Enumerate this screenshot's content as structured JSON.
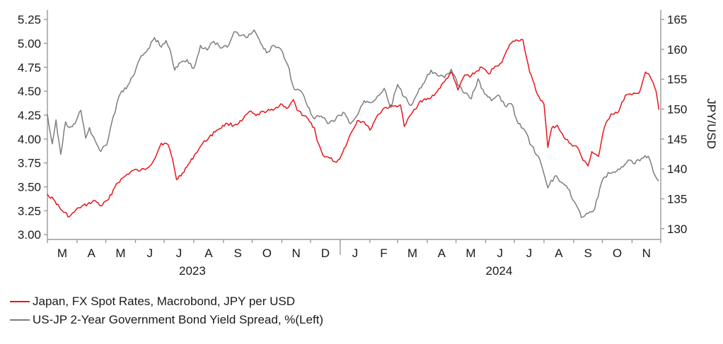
{
  "chart_data": {
    "type": "line",
    "title": "",
    "y_left": {
      "ylim": [
        2.95,
        5.35
      ],
      "ticks": [
        "3.00",
        "3.25",
        "3.50",
        "3.75",
        "4.00",
        "4.25",
        "4.50",
        "4.75",
        "5.00",
        "5.25"
      ]
    },
    "y_right": {
      "ylim": [
        128.2,
        166.6
      ],
      "ticks": [
        "130",
        "135",
        "140",
        "145",
        "150",
        "155",
        "160",
        "165"
      ],
      "label": "JPY/USD"
    },
    "x_months": [
      "M",
      "A",
      "M",
      "J",
      "J",
      "A",
      "S",
      "O",
      "N",
      "D",
      "J",
      "F",
      "M",
      "A",
      "M",
      "J",
      "J",
      "A",
      "S",
      "O",
      "N"
    ],
    "x_years": [
      "2023",
      "2024"
    ],
    "grid": false,
    "legend_position": "bottom-left",
    "series": [
      {
        "name": "Japan, FX Spot Rates, Macrobond, JPY per USD",
        "axis": "right",
        "color": "#e8141b",
        "x": [
          "2023-03-01",
          "2023-03-09",
          "2023-03-15",
          "2023-03-24",
          "2023-04-03",
          "2023-04-12",
          "2023-04-20",
          "2023-04-26",
          "2023-05-04",
          "2023-05-12",
          "2023-05-22",
          "2023-05-30",
          "2023-06-06",
          "2023-06-13",
          "2023-06-20",
          "2023-06-28",
          "2023-07-05",
          "2023-07-10",
          "2023-07-14",
          "2023-07-20",
          "2023-07-28",
          "2023-08-03",
          "2023-08-10",
          "2023-08-17",
          "2023-08-25",
          "2023-09-05",
          "2023-09-12",
          "2023-09-20",
          "2023-09-28",
          "2023-10-05",
          "2023-10-13",
          "2023-10-23",
          "2023-10-31",
          "2023-11-06",
          "2023-11-13",
          "2023-11-17",
          "2023-11-24",
          "2023-11-30",
          "2023-12-05",
          "2023-12-08",
          "2023-12-14",
          "2023-12-21",
          "2023-12-28",
          "2024-01-02",
          "2024-01-10",
          "2024-01-19",
          "2024-01-26",
          "2024-02-01",
          "2024-02-08",
          "2024-02-16",
          "2024-02-26",
          "2024-03-04",
          "2024-03-08",
          "2024-03-15",
          "2024-03-25",
          "2024-04-03",
          "2024-04-10",
          "2024-04-19",
          "2024-04-26",
          "2024-04-29",
          "2024-05-03",
          "2024-05-10",
          "2024-05-17",
          "2024-05-28",
          "2024-06-04",
          "2024-06-11",
          "2024-06-18",
          "2024-06-26",
          "2024-07-03",
          "2024-07-10",
          "2024-07-17",
          "2024-07-25",
          "2024-08-01",
          "2024-08-05",
          "2024-08-09",
          "2024-08-15",
          "2024-08-22",
          "2024-08-29",
          "2024-09-05",
          "2024-09-11",
          "2024-09-16",
          "2024-09-20",
          "2024-09-27",
          "2024-10-03",
          "2024-10-10",
          "2024-10-18",
          "2024-10-25",
          "2024-11-01",
          "2024-11-08",
          "2024-11-15",
          "2024-11-20",
          "2024-11-26",
          "2024-11-29"
        ],
        "y": [
          135.8,
          134.6,
          133.2,
          132.0,
          133.5,
          134.1,
          134.7,
          133.8,
          134.9,
          137.5,
          138.9,
          139.8,
          139.7,
          140.1,
          141.4,
          144.3,
          144.1,
          141.5,
          138.2,
          139.3,
          141.1,
          142.6,
          144.2,
          145.3,
          146.5,
          147.6,
          147.3,
          148.0,
          149.6,
          148.9,
          149.6,
          149.8,
          150.9,
          150.1,
          151.6,
          149.8,
          148.9,
          147.9,
          146.9,
          144.7,
          142.3,
          141.8,
          141.1,
          142.2,
          145.2,
          148.1,
          147.9,
          146.5,
          148.7,
          150.2,
          150.5,
          150.7,
          147.1,
          149.1,
          151.4,
          151.7,
          152.7,
          154.6,
          156.2,
          155.0,
          153.2,
          155.7,
          155.6,
          157.0,
          155.9,
          157.2,
          157.8,
          160.8,
          161.6,
          161.6,
          156.2,
          152.5,
          150.8,
          143.6,
          146.8,
          147.3,
          145.2,
          144.2,
          143.6,
          141.4,
          140.5,
          142.9,
          142.1,
          146.9,
          149.2,
          149.6,
          152.3,
          152.4,
          152.6,
          156.2,
          155.4,
          153.1,
          149.9
        ]
      },
      {
        "name": "US-JP 2-Year Government Bond Yield Spread, %(Left)",
        "axis": "left",
        "color": "#7d7d7d",
        "x": [
          "2023-03-01",
          "2023-03-06",
          "2023-03-10",
          "2023-03-15",
          "2023-03-20",
          "2023-03-24",
          "2023-03-30",
          "2023-04-05",
          "2023-04-10",
          "2023-04-14",
          "2023-04-20",
          "2023-04-26",
          "2023-05-02",
          "2023-05-09",
          "2023-05-16",
          "2023-05-24",
          "2023-05-31",
          "2023-06-07",
          "2023-06-14",
          "2023-06-21",
          "2023-06-28",
          "2023-07-03",
          "2023-07-07",
          "2023-07-12",
          "2023-07-18",
          "2023-07-25",
          "2023-08-01",
          "2023-08-08",
          "2023-08-15",
          "2023-08-22",
          "2023-08-29",
          "2023-09-05",
          "2023-09-12",
          "2023-09-19",
          "2023-09-26",
          "2023-10-03",
          "2023-10-10",
          "2023-10-16",
          "2023-10-23",
          "2023-10-31",
          "2023-11-07",
          "2023-11-14",
          "2023-11-21",
          "2023-11-28",
          "2023-12-05",
          "2023-12-12",
          "2023-12-19",
          "2023-12-27",
          "2024-01-04",
          "2024-01-12",
          "2024-01-19",
          "2024-01-26",
          "2024-02-02",
          "2024-02-09",
          "2024-02-16",
          "2024-02-23",
          "2024-03-01",
          "2024-03-08",
          "2024-03-15",
          "2024-03-22",
          "2024-03-29",
          "2024-04-05",
          "2024-04-12",
          "2024-04-19",
          "2024-04-26",
          "2024-05-03",
          "2024-05-10",
          "2024-05-17",
          "2024-05-24",
          "2024-05-31",
          "2024-06-07",
          "2024-06-14",
          "2024-06-21",
          "2024-06-28",
          "2024-07-05",
          "2024-07-12",
          "2024-07-19",
          "2024-07-26",
          "2024-08-02",
          "2024-08-05",
          "2024-08-12",
          "2024-08-19",
          "2024-08-26",
          "2024-09-02",
          "2024-09-09",
          "2024-09-16",
          "2024-09-23",
          "2024-09-30",
          "2024-10-07",
          "2024-10-14",
          "2024-10-21",
          "2024-10-28",
          "2024-11-04",
          "2024-11-11",
          "2024-11-18",
          "2024-11-25",
          "2024-11-29"
        ],
        "y": [
          4.26,
          3.95,
          4.2,
          3.84,
          4.18,
          4.12,
          4.16,
          4.3,
          4.01,
          4.12,
          3.98,
          3.87,
          3.94,
          4.24,
          4.47,
          4.56,
          4.68,
          4.87,
          4.94,
          5.06,
          4.96,
          5.03,
          4.94,
          4.72,
          4.8,
          4.83,
          4.74,
          4.98,
          4.93,
          5.02,
          4.95,
          4.96,
          5.12,
          5.08,
          5.06,
          5.14,
          5.0,
          4.9,
          4.98,
          4.94,
          4.78,
          4.52,
          4.5,
          4.34,
          4.21,
          4.24,
          4.16,
          4.2,
          4.28,
          4.16,
          4.25,
          4.4,
          4.38,
          4.45,
          4.53,
          4.33,
          4.57,
          4.44,
          4.35,
          4.48,
          4.59,
          4.72,
          4.66,
          4.64,
          4.73,
          4.56,
          4.48,
          4.42,
          4.63,
          4.47,
          4.4,
          4.46,
          4.35,
          4.37,
          4.16,
          4.09,
          3.93,
          3.82,
          3.6,
          3.49,
          3.61,
          3.55,
          3.48,
          3.34,
          3.18,
          3.22,
          3.27,
          3.54,
          3.65,
          3.65,
          3.71,
          3.78,
          3.74,
          3.8,
          3.82,
          3.62,
          3.56
        ]
      }
    ],
    "legend": [
      {
        "label": "Japan, FX Spot Rates, Macrobond, JPY per USD",
        "color": "#e8141b"
      },
      {
        "label": "US-JP 2-Year Government Bond Yield Spread, %(Left)",
        "color": "#7d7d7d"
      }
    ]
  }
}
